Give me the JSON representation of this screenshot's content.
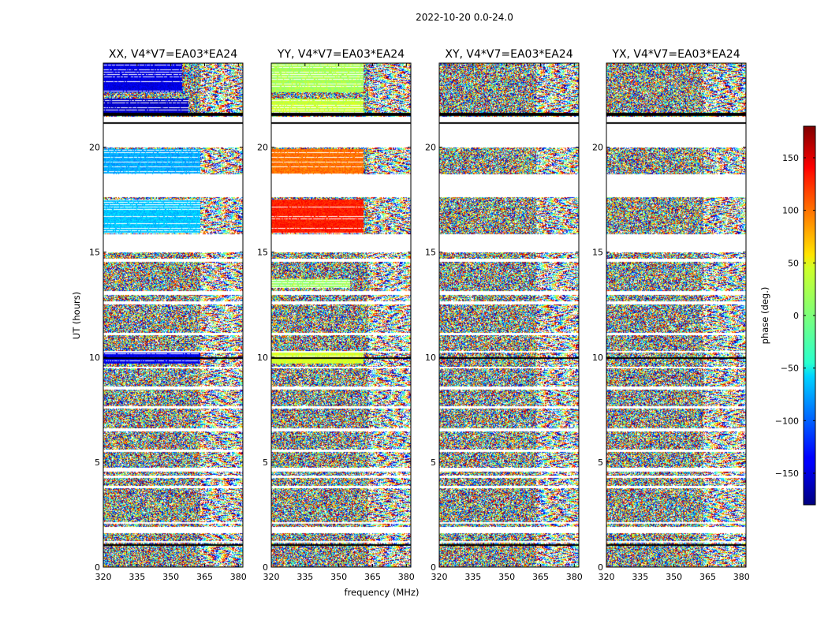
{
  "figure": {
    "suptitle": "2022-10-20 0.0-24.0"
  },
  "chart_data": {
    "type": "heatmap",
    "title": "2022-10-20 0.0-24.0",
    "xlabel": "frequency (MHz)",
    "ylabel": "UT (hours)",
    "colorbar_label": "phase (deg.)",
    "xlim": [
      320,
      382
    ],
    "ylim": [
      0,
      24
    ],
    "xticks": [
      320,
      335,
      350,
      365,
      380
    ],
    "yticks": [
      0,
      5,
      10,
      15,
      20
    ],
    "clim": [
      -180,
      180
    ],
    "cticks": [
      -150,
      -100,
      -50,
      0,
      50,
      100,
      150
    ],
    "cticklabels": [
      "−150",
      "−100",
      "−50",
      "0",
      "50",
      "100",
      "150"
    ],
    "colormap": "jet",
    "noise_edge_frequency_mhz": 363,
    "panels": [
      {
        "title": "XX, V4*V7=EA03*EA24",
        "coherent_bands": [
          {
            "t0": 22.6,
            "t1": 24.0,
            "base_phase": -145,
            "edge_mhz": 355
          },
          {
            "t0": 21.6,
            "t1": 22.3,
            "base_phase": -155,
            "edge_mhz": 358
          },
          {
            "t0": 18.7,
            "t1": 19.9,
            "base_phase": -75,
            "edge_mhz": 363
          },
          {
            "t0": 15.9,
            "t1": 17.5,
            "base_phase": -65,
            "edge_mhz": 363
          },
          {
            "t0": 9.7,
            "t1": 10.2,
            "base_phase": -140,
            "edge_mhz": 363
          }
        ]
      },
      {
        "title": "YY, V4*V7=EA03*EA24",
        "coherent_bands": [
          {
            "t0": 22.6,
            "t1": 24.0,
            "base_phase": 15,
            "edge_mhz": 361
          },
          {
            "t0": 21.6,
            "t1": 22.3,
            "base_phase": 25,
            "edge_mhz": 361
          },
          {
            "t0": 18.7,
            "t1": 19.9,
            "base_phase": 95,
            "edge_mhz": 361
          },
          {
            "t0": 15.9,
            "t1": 17.5,
            "base_phase": 125,
            "edge_mhz": 361
          },
          {
            "t0": 13.3,
            "t1": 13.7,
            "base_phase": 10,
            "edge_mhz": 355
          },
          {
            "t0": 9.7,
            "t1": 10.2,
            "base_phase": 30,
            "edge_mhz": 361
          }
        ]
      },
      {
        "title": "XY, V4*V7=EA03*EA24",
        "coherent_bands": []
      },
      {
        "title": "YX, V4*V7=EA03*EA24",
        "coherent_bands": []
      }
    ],
    "data_gaps_hours": [
      [
        21.0,
        21.45
      ],
      [
        20.0,
        21.0
      ],
      [
        17.6,
        18.7
      ],
      [
        15.0,
        15.85
      ],
      [
        14.55,
        14.7
      ],
      [
        12.95,
        13.15
      ],
      [
        12.5,
        12.65
      ],
      [
        11.05,
        11.15
      ],
      [
        10.2,
        10.3
      ],
      [
        9.45,
        9.55
      ],
      [
        8.45,
        8.6
      ],
      [
        7.55,
        7.65
      ],
      [
        6.45,
        6.6
      ],
      [
        5.5,
        5.6
      ],
      [
        4.55,
        4.75
      ],
      [
        4.25,
        4.35
      ],
      [
        3.75,
        3.85
      ],
      [
        2.05,
        2.15
      ],
      [
        1.6,
        1.9
      ],
      [
        1.15,
        1.25
      ]
    ],
    "black_rows_hours": [
      [
        21.5,
        21.65
      ],
      [
        21.12,
        21.2
      ],
      [
        9.9,
        10.0
      ],
      [
        1.02,
        1.08
      ]
    ]
  }
}
